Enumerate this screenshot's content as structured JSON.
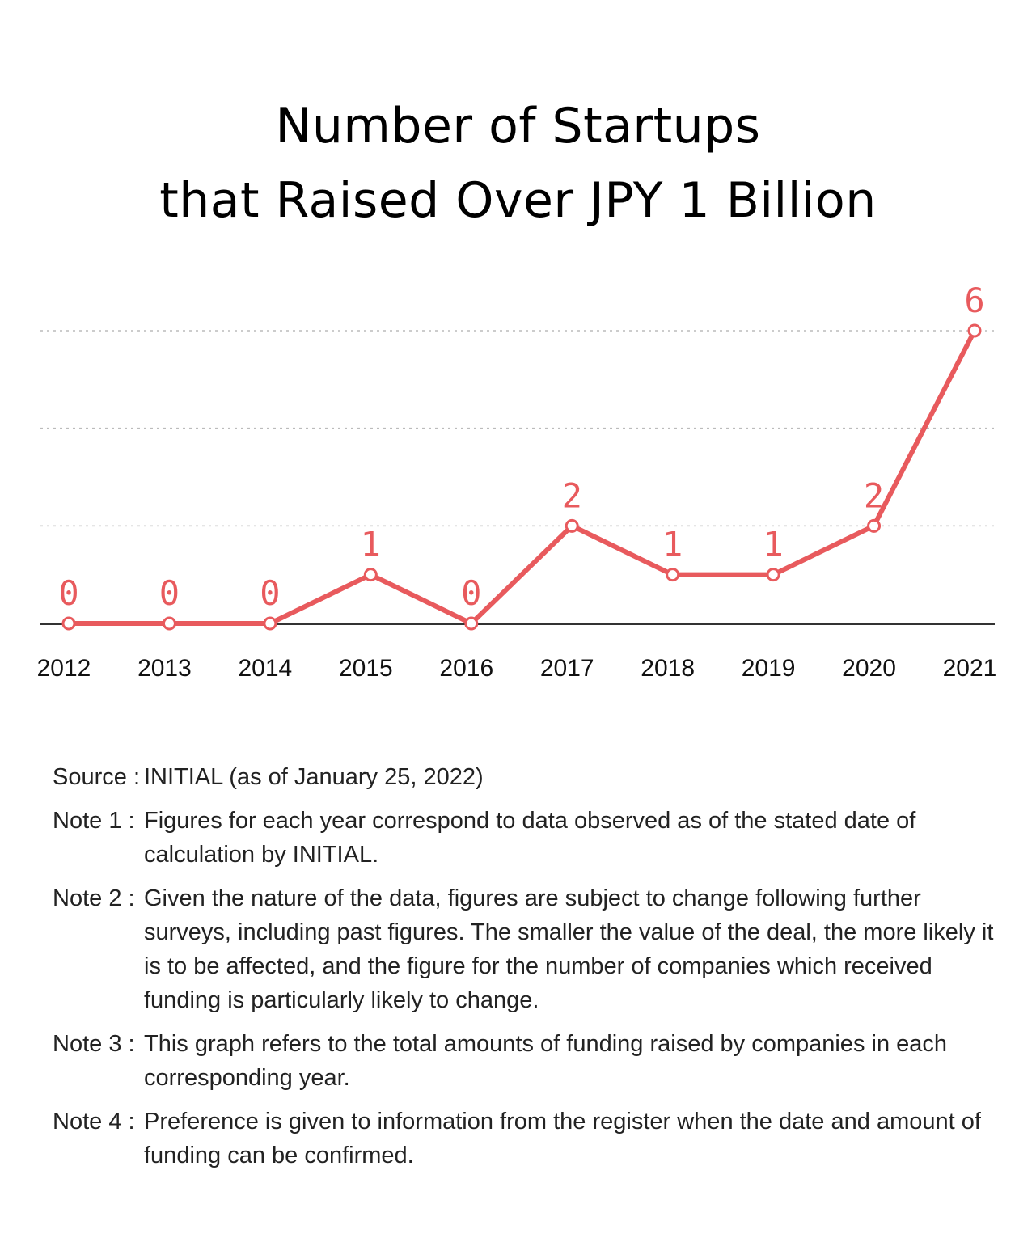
{
  "title": {
    "line1": "Number of Startups",
    "line2": "that Raised Over JPY 1 Billion"
  },
  "chart_data": {
    "type": "line",
    "title": "Number of Startups that Raised Over JPY 1 Billion",
    "xlabel": "",
    "ylabel": "",
    "categories": [
      "2012",
      "2013",
      "2014",
      "2015",
      "2016",
      "2017",
      "2018",
      "2019",
      "2020",
      "2021"
    ],
    "series": [
      {
        "values": [
          0,
          0,
          0,
          1,
          0,
          2,
          1,
          1,
          2,
          6
        ]
      }
    ],
    "data_labels": [
      "0",
      "0",
      "0",
      "1",
      "0",
      "2",
      "1",
      "1",
      "2",
      "6"
    ],
    "ylim": [
      0,
      6
    ],
    "gridlines": [
      2,
      4,
      6
    ],
    "grid": true,
    "legend": "none",
    "colors": {
      "line": "#e85a5d",
      "grid": "#bbbbbb",
      "baseline": "#333333"
    }
  },
  "notes": [
    {
      "label": "Source :",
      "text": "INITIAL (as of January 25, 2022)"
    },
    {
      "label": "Note 1 :",
      "text": "Figures for each year correspond to data observed as of the stated date of calculation by INITIAL."
    },
    {
      "label": "Note 2 :",
      "text": "Given the nature of the data, figures are subject to change following further surveys, including past figures. The smaller the value of the deal, the more likely it is to be affected, and the figure for the number of companies which received funding is particularly likely to change."
    },
    {
      "label": "Note 3 :",
      "text": "This graph refers to the total amounts of funding raised by companies in each corresponding year."
    },
    {
      "label": "Note 4 :",
      "text": "Preference is given to information from the register when the date and amount of funding can be confirmed."
    }
  ]
}
